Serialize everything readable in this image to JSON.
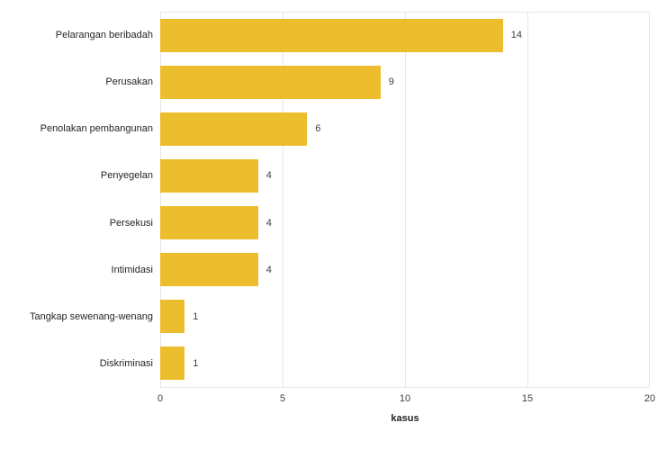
{
  "chart_data": {
    "type": "bar",
    "orientation": "horizontal",
    "title": "",
    "categories": [
      "Pelarangan beribadah",
      "Perusakan",
      "Penolakan pembangunan",
      "Penyegelan",
      "Persekusi",
      "Intimidasi",
      "Tangkap sewenang-wenang",
      "Diskriminasi"
    ],
    "values": [
      14,
      9,
      6,
      4,
      4,
      4,
      1,
      1
    ],
    "data_labels": [
      "14",
      "9",
      "6",
      "4",
      "4",
      "4",
      "1",
      "1"
    ],
    "xlabel": "kasus",
    "ylabel": "",
    "xlim": [
      0,
      20
    ],
    "x_ticks": [
      "0",
      "5",
      "10",
      "15",
      "20"
    ],
    "x_tick_values": [
      0,
      5,
      10,
      15,
      20
    ],
    "grid": "vertical",
    "legend": "none",
    "bar_color": "#ECBE2D"
  },
  "colors": {
    "bar": "#ECBE2D",
    "gridline": "#E6E6E6",
    "category_label": "#252423",
    "tick_label": "#404040",
    "background": "#FFFFFF"
  }
}
